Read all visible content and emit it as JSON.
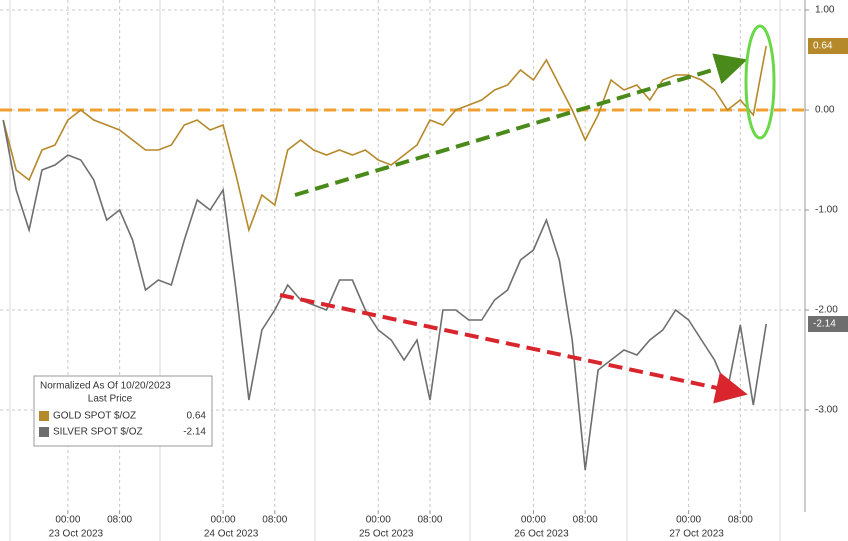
{
  "chart_data": {
    "type": "line",
    "legend_title": "Normalized As Of 10/20/2023",
    "legend_subtitle": "Last Price",
    "x": [
      -10,
      -8,
      -6,
      -4,
      -2,
      0,
      2,
      4,
      6,
      8,
      10,
      12,
      14,
      16,
      18,
      20,
      22,
      24,
      26,
      28,
      30,
      32,
      34,
      36,
      38,
      40,
      42,
      44,
      46,
      48,
      50,
      52,
      54,
      56,
      58,
      60,
      62,
      64,
      66,
      68,
      70,
      72,
      74,
      76,
      78,
      80,
      82,
      84,
      86,
      88,
      90,
      92,
      94,
      96,
      98,
      100,
      102,
      104,
      106,
      108
    ],
    "series": [
      {
        "name": "GOLD SPOT $/OZ",
        "color": "#b5892a",
        "values": [
          -0.1,
          -0.6,
          -0.7,
          -0.4,
          -0.35,
          -0.1,
          0.0,
          -0.1,
          -0.15,
          -0.2,
          -0.3,
          -0.4,
          -0.4,
          -0.35,
          -0.15,
          -0.1,
          -0.2,
          -0.15,
          -0.65,
          -1.2,
          -0.85,
          -0.95,
          -0.4,
          -0.3,
          -0.4,
          -0.45,
          -0.4,
          -0.45,
          -0.4,
          -0.5,
          -0.55,
          -0.45,
          -0.35,
          -0.1,
          -0.15,
          0.0,
          0.05,
          0.1,
          0.2,
          0.25,
          0.4,
          0.3,
          0.5,
          0.25,
          0.0,
          -0.3,
          -0.05,
          0.3,
          0.2,
          0.25,
          0.1,
          0.3,
          0.35,
          0.35,
          0.3,
          0.2,
          0.0,
          0.1,
          -0.05,
          0.64
        ]
      },
      {
        "name": "SILVER SPOT $/OZ",
        "color": "#6e6e6e",
        "values": [
          -0.1,
          -0.8,
          -1.2,
          -0.6,
          -0.55,
          -0.45,
          -0.5,
          -0.7,
          -1.1,
          -1.0,
          -1.3,
          -1.8,
          -1.7,
          -1.75,
          -1.3,
          -0.9,
          -1.0,
          -0.8,
          -1.8,
          -2.9,
          -2.2,
          -2.0,
          -1.75,
          -1.9,
          -1.95,
          -2.0,
          -1.7,
          -1.7,
          -2.0,
          -2.2,
          -2.3,
          -2.5,
          -2.3,
          -2.9,
          -2.0,
          -2.0,
          -2.1,
          -2.1,
          -1.9,
          -1.8,
          -1.5,
          -1.4,
          -1.1,
          -1.5,
          -2.3,
          -3.6,
          -2.6,
          -2.5,
          -2.4,
          -2.45,
          -2.3,
          -2.2,
          -2.0,
          -2.1,
          -2.3,
          -2.5,
          -2.8,
          -2.15,
          -2.95,
          -2.14
        ]
      }
    ],
    "reference_line": 0,
    "reference_color": "#f0a030",
    "xlim": [
      -10.5,
      114
    ],
    "ylim": [
      -4,
      1.1
    ],
    "xticks": [
      {
        "value": 0,
        "label": "00:00"
      },
      {
        "value": 8,
        "label": "08:00"
      },
      {
        "value": 24,
        "label": "00:00"
      },
      {
        "value": 32,
        "label": "08:00"
      },
      {
        "value": 48,
        "label": "00:00"
      },
      {
        "value": 56,
        "label": "08:00"
      },
      {
        "value": 72,
        "label": "00:00"
      },
      {
        "value": 80,
        "label": "08:00"
      },
      {
        "value": 96,
        "label": "00:00"
      },
      {
        "value": 104,
        "label": "08:00"
      }
    ],
    "xdates": [
      {
        "value": 0,
        "label": "23 Oct 2023"
      },
      {
        "value": 24,
        "label": "24 Oct 2023"
      },
      {
        "value": 48,
        "label": "25 Oct 2023"
      },
      {
        "value": 72,
        "label": "26 Oct 2023"
      },
      {
        "value": 96,
        "label": "27 Oct 2023"
      }
    ],
    "yticks": [
      {
        "value": 1,
        "label": "1.00"
      },
      {
        "value": 0,
        "label": "0.00"
      },
      {
        "value": -1,
        "label": "-1.00"
      },
      {
        "value": -2,
        "label": "-2.00"
      },
      {
        "value": -3,
        "label": "-3.00"
      }
    ],
    "grid": true
  }
}
